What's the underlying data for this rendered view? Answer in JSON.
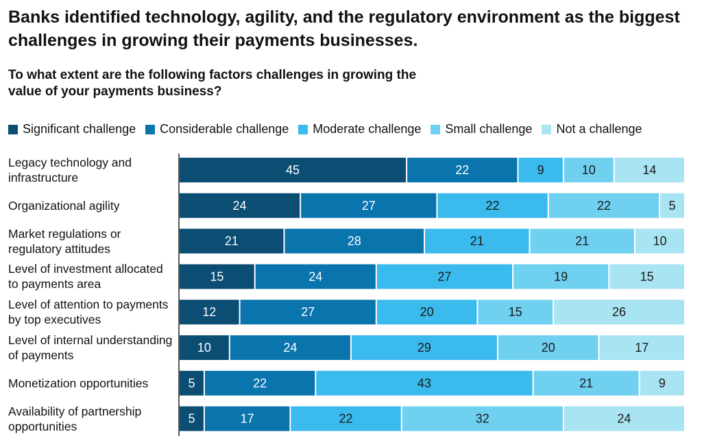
{
  "chart_data": {
    "type": "bar",
    "orientation": "horizontal",
    "stacked": true,
    "title": "Banks identified technology, agility, and the regulatory environment as the biggest challenges in growing their payments businesses.",
    "subtitle": "To what extent are the following factors challenges in growing the value of your payments business?",
    "legend_position": "top",
    "categories": [
      "Legacy technology and infrastructure",
      "Organizational agility",
      "Market regulations or regulatory attitudes",
      "Level of investment allocated to payments area",
      "Level of attention to payments by top executives",
      "Level of internal understanding of payments",
      "Monetization opportunities",
      "Availability of partnership opportunities"
    ],
    "series": [
      {
        "name": "Significant challenge",
        "color": "#0b4d73",
        "values": [
          45,
          24,
          21,
          15,
          12,
          10,
          5,
          5
        ]
      },
      {
        "name": "Considerable challenge",
        "color": "#0a74ad",
        "values": [
          22,
          27,
          28,
          24,
          27,
          24,
          22,
          17
        ]
      },
      {
        "name": "Moderate challenge",
        "color": "#3bbaed",
        "values": [
          9,
          22,
          21,
          27,
          20,
          29,
          43,
          22
        ]
      },
      {
        "name": "Small challenge",
        "color": "#6fd0f0",
        "values": [
          10,
          22,
          21,
          19,
          15,
          20,
          21,
          32
        ]
      },
      {
        "name": "Not a challenge",
        "color": "#a9e4f2",
        "values": [
          14,
          5,
          10,
          15,
          26,
          17,
          9,
          24
        ]
      }
    ]
  }
}
